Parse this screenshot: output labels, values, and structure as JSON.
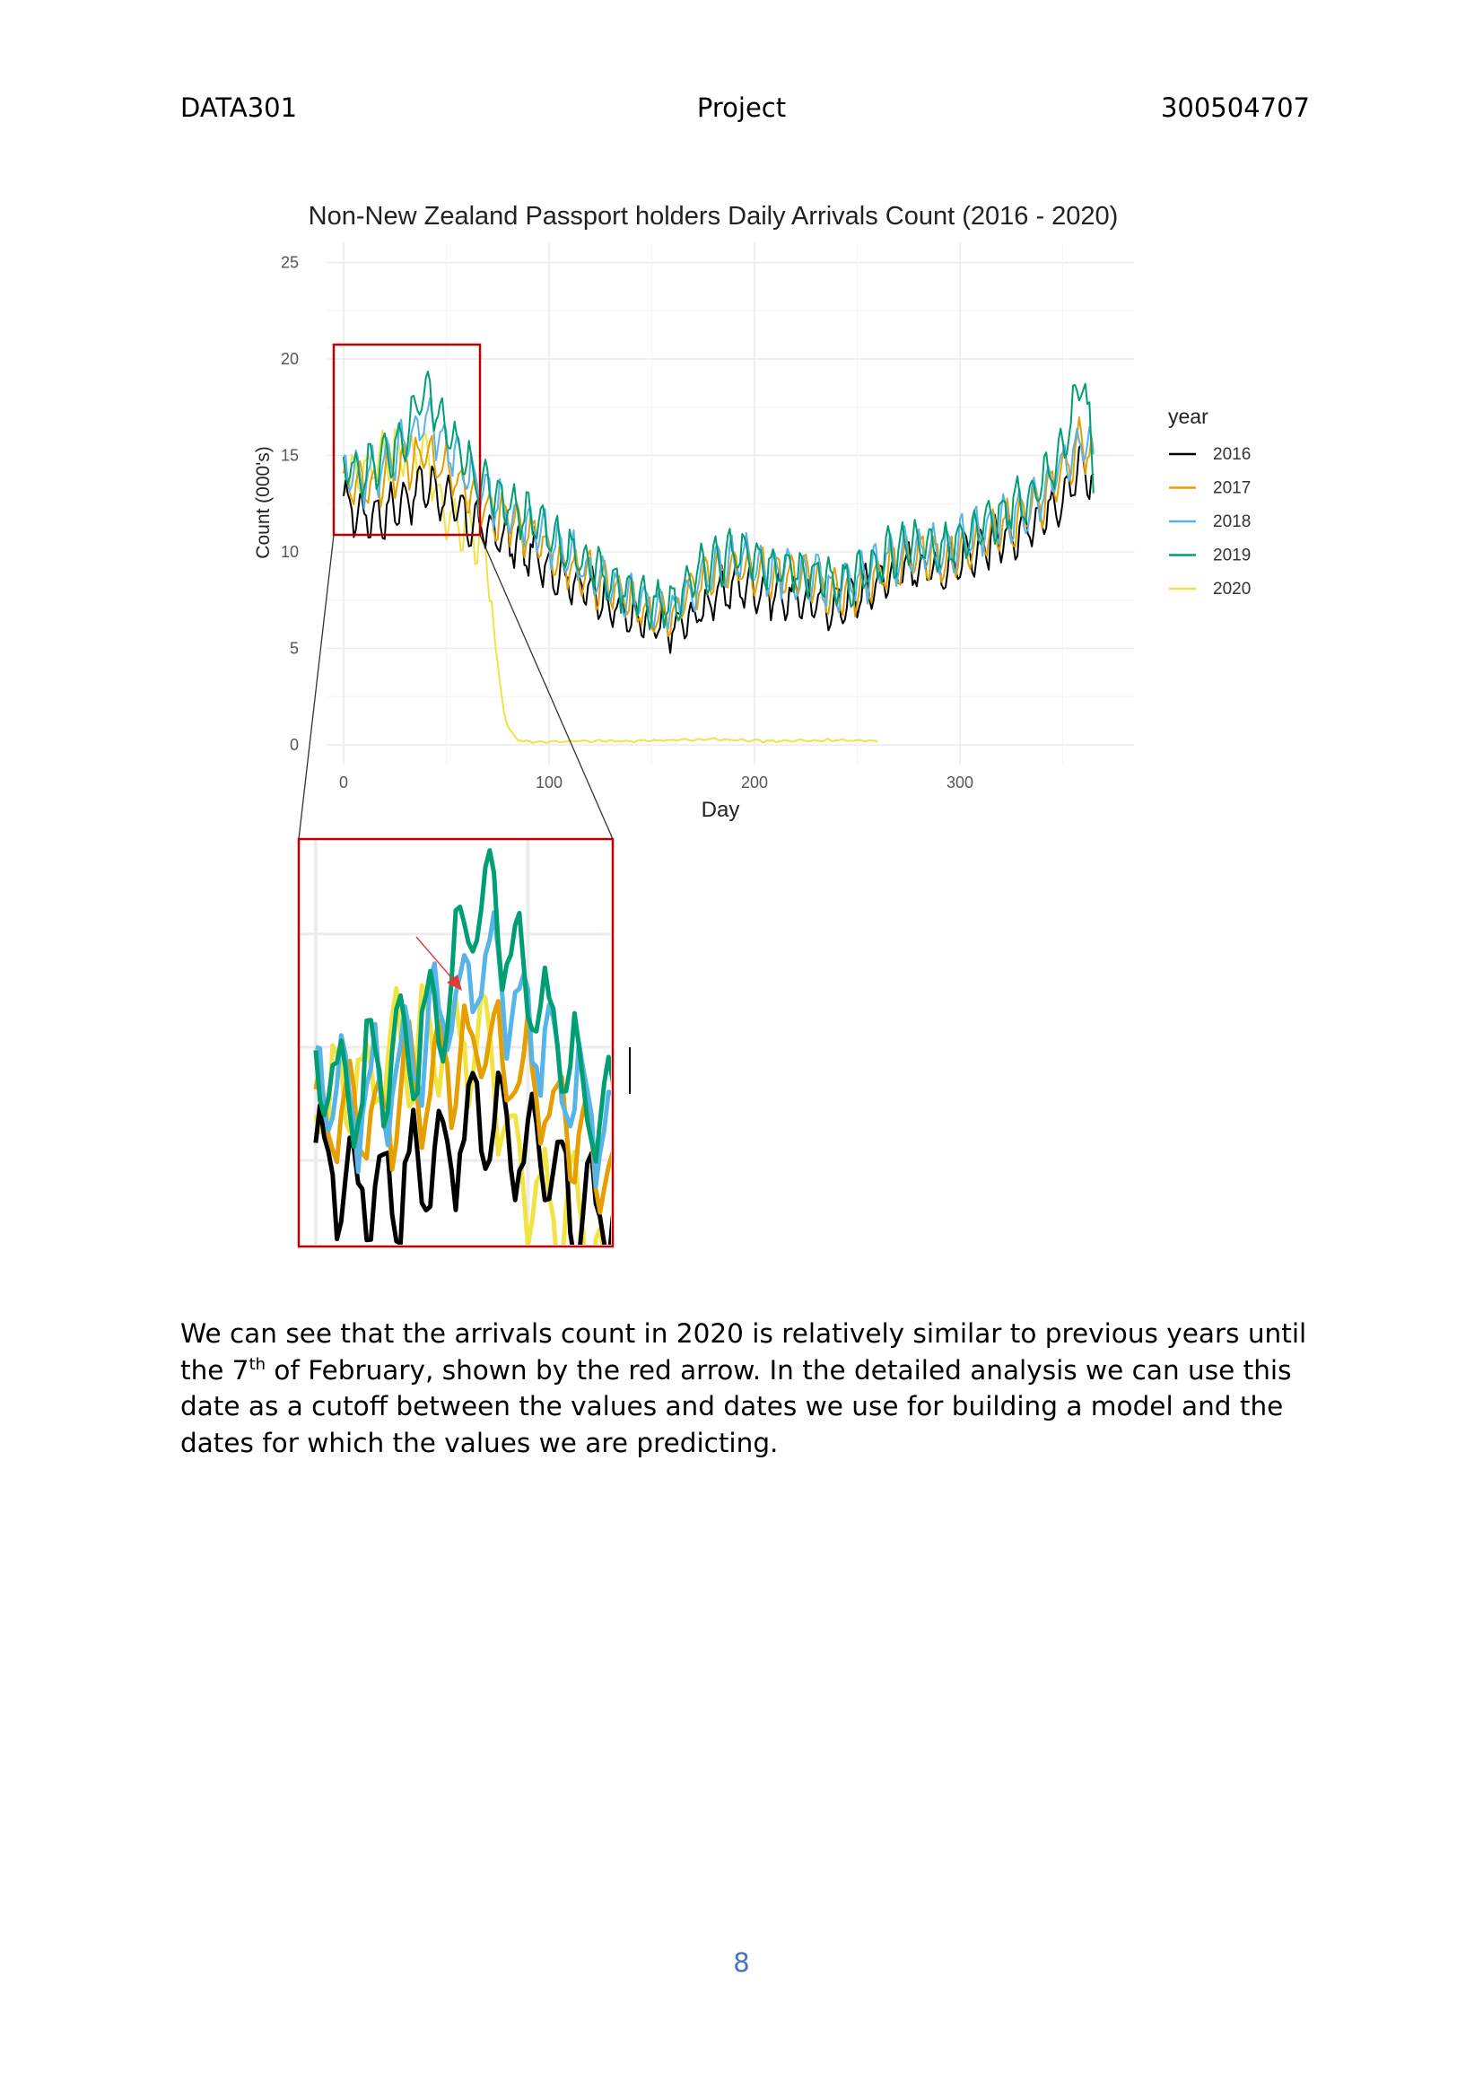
{
  "header": {
    "course": "DATA301",
    "title": "Project",
    "student_id": "300504707"
  },
  "chart_data": {
    "type": "line",
    "title": "Non-New Zealand Passport holders Daily Arrivals Count (2016 - 2020)",
    "xlabel": "Day",
    "ylabel": "Count (000's)",
    "xlim": [
      -8,
      385
    ],
    "ylim": [
      -1,
      26
    ],
    "xticks": [
      0,
      100,
      200,
      300
    ],
    "yticks": [
      0,
      5,
      10,
      15,
      20,
      25
    ],
    "grid": true,
    "legend_title": "year",
    "legend_position": "right",
    "series": [
      {
        "name": "2016",
        "color": "#000000",
        "x": [
          0,
          10,
          20,
          30,
          40,
          50,
          60,
          70,
          80,
          90,
          100,
          110,
          120,
          130,
          140,
          150,
          160,
          170,
          180,
          190,
          200,
          210,
          220,
          230,
          240,
          250,
          260,
          270,
          280,
          290,
          300,
          310,
          320,
          330,
          340,
          350,
          360,
          365
        ],
        "values": [
          12.5,
          11.9,
          12.0,
          12.7,
          13.5,
          12.8,
          11.6,
          11.2,
          10.6,
          10.0,
          9.2,
          8.6,
          8.0,
          7.3,
          6.6,
          6.1,
          6.0,
          6.6,
          7.6,
          8.3,
          8.2,
          7.8,
          7.6,
          7.4,
          7.2,
          7.8,
          8.4,
          9.0,
          9.3,
          9.1,
          9.6,
          10.2,
          10.5,
          11.0,
          11.9,
          13.0,
          14.5,
          13.5
        ]
      },
      {
        "name": "2017",
        "color": "#e69f00",
        "x": [
          0,
          10,
          20,
          30,
          40,
          50,
          60,
          70,
          80,
          90,
          100,
          110,
          120,
          130,
          140,
          150,
          160,
          170,
          180,
          190,
          200,
          210,
          220,
          230,
          240,
          250,
          260,
          270,
          280,
          290,
          300,
          310,
          320,
          330,
          340,
          350,
          360,
          365
        ],
        "values": [
          13.6,
          13.2,
          13.9,
          14.6,
          15.0,
          14.2,
          13.3,
          12.3,
          11.7,
          11.0,
          10.1,
          9.2,
          8.6,
          8.1,
          7.4,
          6.8,
          6.6,
          8.2,
          8.9,
          9.3,
          9.0,
          8.8,
          8.6,
          8.4,
          7.8,
          8.1,
          8.9,
          9.6,
          9.9,
          9.6,
          10.1,
          10.6,
          11.2,
          11.7,
          12.7,
          14.1,
          15.8,
          14.5
        ]
      },
      {
        "name": "2018",
        "color": "#56b4e9",
        "x": [
          0,
          10,
          20,
          30,
          40,
          50,
          60,
          70,
          80,
          90,
          100,
          110,
          120,
          130,
          140,
          150,
          160,
          170,
          180,
          190,
          200,
          210,
          220,
          230,
          240,
          250,
          260,
          270,
          280,
          290,
          300,
          310,
          320,
          330,
          340,
          350,
          360,
          365
        ],
        "values": [
          14.1,
          13.8,
          14.5,
          15.6,
          17.0,
          15.6,
          14.2,
          12.9,
          12.2,
          11.4,
          10.6,
          9.7,
          9.0,
          8.3,
          7.6,
          7.1,
          6.9,
          8.1,
          9.0,
          9.6,
          9.4,
          9.0,
          8.9,
          8.6,
          8.1,
          8.4,
          9.2,
          9.8,
          10.2,
          9.9,
          10.4,
          11.0,
          11.6,
          12.1,
          13.1,
          14.5,
          16.0,
          15.0
        ]
      },
      {
        "name": "2019",
        "color": "#009e73",
        "x": [
          0,
          10,
          20,
          30,
          40,
          50,
          60,
          70,
          80,
          90,
          100,
          110,
          120,
          130,
          140,
          150,
          160,
          170,
          180,
          190,
          200,
          210,
          220,
          230,
          240,
          250,
          260,
          270,
          280,
          290,
          300,
          310,
          320,
          330,
          340,
          350,
          360,
          365
        ],
        "values": [
          14.4,
          14.2,
          14.8,
          15.9,
          18.5,
          16.2,
          14.6,
          13.3,
          12.6,
          11.9,
          11.0,
          10.0,
          9.3,
          8.5,
          7.9,
          7.3,
          7.2,
          8.6,
          9.4,
          9.9,
          9.6,
          9.2,
          9.1,
          8.8,
          8.3,
          8.6,
          9.5,
          10.1,
          10.4,
          10.1,
          10.7,
          11.4,
          12.0,
          12.6,
          13.6,
          15.2,
          19.5,
          14.0
        ]
      },
      {
        "name": "2020",
        "color": "#f0e442",
        "x": [
          0,
          10,
          20,
          30,
          40,
          45,
          50,
          55,
          60,
          65,
          70,
          72,
          74,
          76,
          78,
          80,
          85,
          90,
          100,
          120,
          140,
          160,
          180,
          200,
          220,
          240,
          260
        ],
        "values": [
          13.7,
          14.3,
          14.9,
          15.4,
          14.8,
          13.2,
          12.0,
          11.2,
          11.5,
          10.6,
          9.2,
          7.5,
          5.0,
          3.3,
          1.8,
          0.9,
          0.25,
          0.15,
          0.15,
          0.2,
          0.2,
          0.25,
          0.3,
          0.2,
          0.2,
          0.25,
          0.2
        ]
      }
    ],
    "annotation": "Inset zoom of days 0 to 70 (y 11 to 19); red arrow marks 7 February 2020"
  },
  "paragraph": {
    "part1": "We can see that the arrivals count in 2020 is relatively similar to previous years until the 7",
    "superscript": "th",
    "part2": " of February, shown by the red arrow. In the detailed analysis we can use this date as a cutoff between the values and dates we use for building a model and the dates for which the values we are predicting."
  },
  "page_number": "8"
}
